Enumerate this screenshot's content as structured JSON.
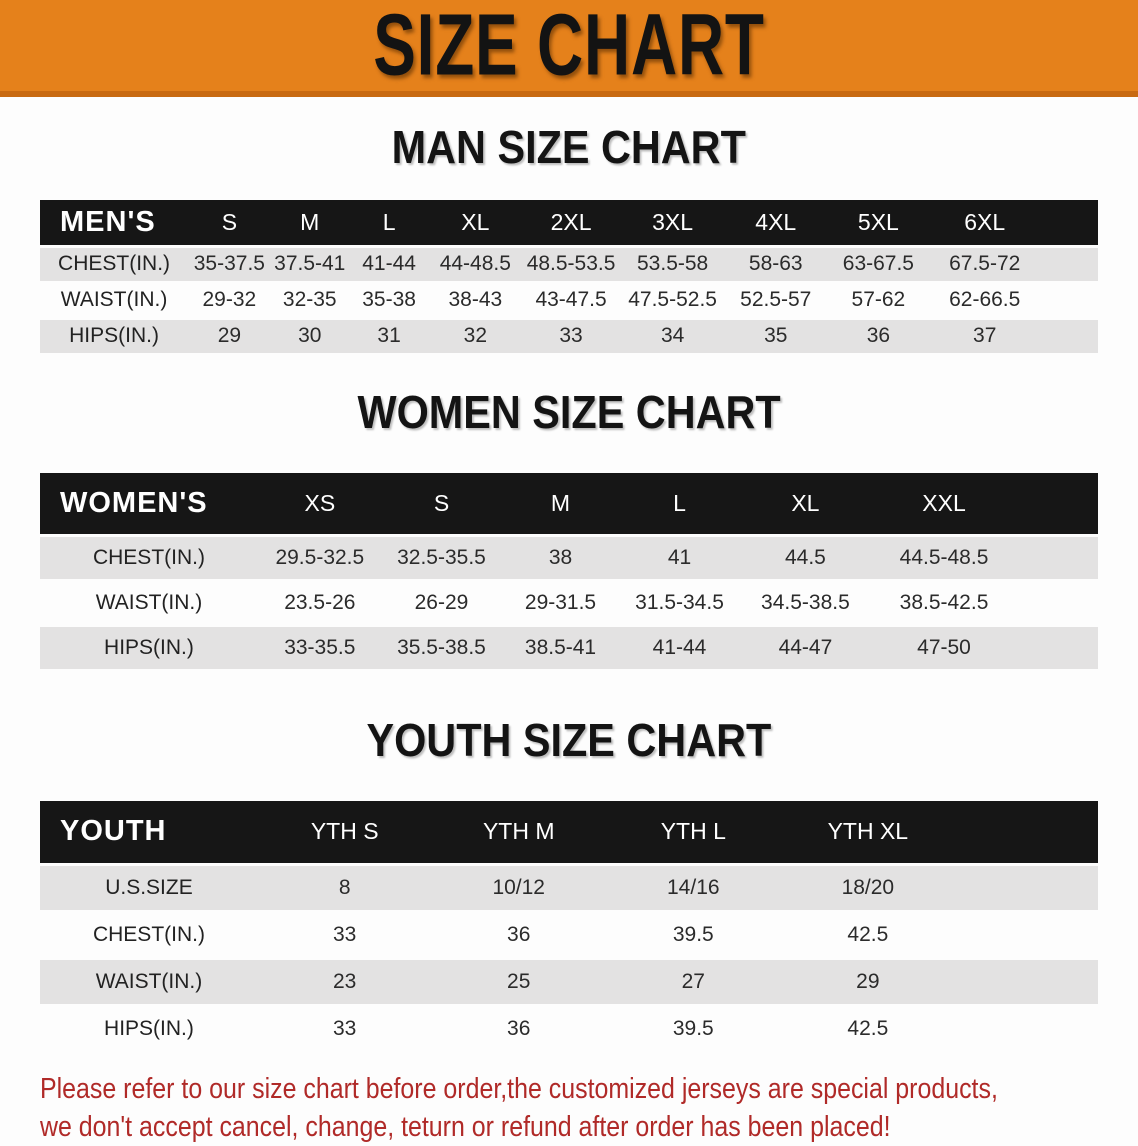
{
  "banner": {
    "title": "SIZE CHART"
  },
  "sections": {
    "men": {
      "heading": "MAN SIZE CHART"
    },
    "women": {
      "heading": "WOMEN SIZE CHART"
    },
    "youth": {
      "heading": "YOUTH SIZE CHART"
    }
  },
  "tables": {
    "men": {
      "label": "MEN'S",
      "sizes": [
        "S",
        "M",
        "L",
        "XL",
        "2XL",
        "3XL",
        "4XL",
        "5XL",
        "6XL"
      ],
      "rows": [
        {
          "label": "CHEST(IN.)",
          "values": [
            "35-37.5",
            "37.5-41",
            "41-44",
            "44-48.5",
            "48.5-53.5",
            "53.5-58",
            "58-63",
            "63-67.5",
            "67.5-72"
          ]
        },
        {
          "label": "WAIST(IN.)",
          "values": [
            "29-32",
            "32-35",
            "35-38",
            "38-43",
            "43-47.5",
            "47.5-52.5",
            "52.5-57",
            "57-62",
            "62-66.5"
          ]
        },
        {
          "label": "HIPS(IN.)",
          "values": [
            "29",
            "30",
            "31",
            "32",
            "33",
            "34",
            "35",
            "36",
            "37"
          ]
        }
      ]
    },
    "women": {
      "label": "WOMEN'S",
      "sizes": [
        "XS",
        "S",
        "M",
        "L",
        "XL",
        "XXL"
      ],
      "rows": [
        {
          "label": "CHEST(IN.)",
          "values": [
            "29.5-32.5",
            "32.5-35.5",
            "38",
            "41",
            "44.5",
            "44.5-48.5"
          ]
        },
        {
          "label": "WAIST(IN.)",
          "values": [
            "23.5-26",
            "26-29",
            "29-31.5",
            "31.5-34.5",
            "34.5-38.5",
            "38.5-42.5"
          ]
        },
        {
          "label": "HIPS(IN.)",
          "values": [
            "33-35.5",
            "35.5-38.5",
            "38.5-41",
            "41-44",
            "44-47",
            "47-50"
          ]
        }
      ]
    },
    "youth": {
      "label": "YOUTH",
      "sizes": [
        "YTH S",
        "YTH M",
        "YTH L",
        "YTH XL"
      ],
      "rows": [
        {
          "label": "U.S.SIZE",
          "values": [
            "8",
            "10/12",
            "14/16",
            "18/20"
          ]
        },
        {
          "label": "CHEST(IN.)",
          "values": [
            "33",
            "36",
            "39.5",
            "42.5"
          ]
        },
        {
          "label": "WAIST(IN.)",
          "values": [
            "23",
            "25",
            "27",
            "29"
          ]
        },
        {
          "label": "HIPS(IN.)",
          "values": [
            "33",
            "36",
            "39.5",
            "42.5"
          ]
        }
      ]
    }
  },
  "footer": {
    "line1": "Please refer to our size chart before order,the customized jerseys are special products,",
    "line2": "we don't accept cancel, change, teturn or refund after order has been placed!"
  },
  "colors": {
    "banner_bg": "#E5811B",
    "header_bar": "#161616",
    "row_gray": "#E3E2E2",
    "note_red": "#B02A28"
  }
}
